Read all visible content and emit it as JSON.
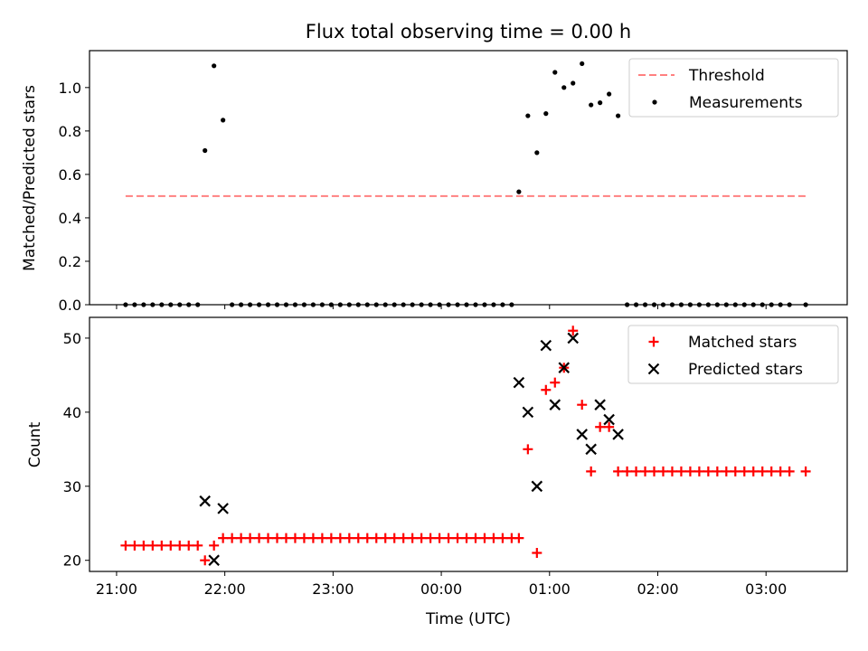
{
  "chart_data": [
    {
      "type": "scatter",
      "title": "Flux total observing time = 0.00 h",
      "xlabel": "",
      "ylabel": "Matched/Predicted stars",
      "xlim": [
        "20:45",
        "03:45"
      ],
      "ylim": [
        0,
        1.17
      ],
      "yticks": [
        0.0,
        0.2,
        0.4,
        0.6,
        0.8,
        1.0
      ],
      "ytick_labels": [
        "0.0",
        "0.2",
        "0.4",
        "0.6",
        "0.8",
        "1.0"
      ],
      "legend_placement": "top-right",
      "series": [
        {
          "name": "Threshold",
          "kind": "dashed-line",
          "color": "#ff8080",
          "points": [
            [
              "21:05",
              0.5
            ],
            [
              "03:22",
              0.5
            ]
          ]
        },
        {
          "name": "Measurements",
          "kind": "dots",
          "color": "#000000",
          "points": [
            [
              "21:05",
              0
            ],
            [
              "21:10",
              0
            ],
            [
              "21:15",
              0
            ],
            [
              "21:20",
              0
            ],
            [
              "21:25",
              0
            ],
            [
              "21:30",
              0
            ],
            [
              "21:35",
              0
            ],
            [
              "21:40",
              0
            ],
            [
              "21:45",
              0
            ],
            [
              "21:49",
              0.71
            ],
            [
              "21:54",
              1.1
            ],
            [
              "21:59",
              0.85
            ],
            [
              "22:04",
              0
            ],
            [
              "22:09",
              0
            ],
            [
              "22:14",
              0
            ],
            [
              "22:19",
              0
            ],
            [
              "22:24",
              0
            ],
            [
              "22:29",
              0
            ],
            [
              "22:34",
              0
            ],
            [
              "22:39",
              0
            ],
            [
              "22:44",
              0
            ],
            [
              "22:49",
              0
            ],
            [
              "22:54",
              0
            ],
            [
              "22:59",
              0
            ],
            [
              "23:04",
              0
            ],
            [
              "23:09",
              0
            ],
            [
              "23:14",
              0
            ],
            [
              "23:19",
              0
            ],
            [
              "23:24",
              0
            ],
            [
              "23:29",
              0
            ],
            [
              "23:34",
              0
            ],
            [
              "23:39",
              0
            ],
            [
              "23:44",
              0
            ],
            [
              "23:49",
              0
            ],
            [
              "23:54",
              0
            ],
            [
              "23:59",
              0
            ],
            [
              "00:04",
              0
            ],
            [
              "00:09",
              0
            ],
            [
              "00:14",
              0
            ],
            [
              "00:19",
              0
            ],
            [
              "00:24",
              0
            ],
            [
              "00:29",
              0
            ],
            [
              "00:34",
              0
            ],
            [
              "00:39",
              0
            ],
            [
              "00:43",
              0.52
            ],
            [
              "00:48",
              0.87
            ],
            [
              "00:53",
              0.7
            ],
            [
              "00:58",
              0.88
            ],
            [
              "01:03",
              1.07
            ],
            [
              "01:08",
              1.0
            ],
            [
              "01:13",
              1.02
            ],
            [
              "01:18",
              1.11
            ],
            [
              "01:23",
              0.92
            ],
            [
              "01:28",
              0.93
            ],
            [
              "01:33",
              0.97
            ],
            [
              "01:38",
              0.87
            ],
            [
              "01:43",
              0
            ],
            [
              "01:48",
              0
            ],
            [
              "01:53",
              0
            ],
            [
              "01:58",
              0
            ],
            [
              "02:03",
              0
            ],
            [
              "02:08",
              0
            ],
            [
              "02:13",
              0
            ],
            [
              "02:18",
              0
            ],
            [
              "02:23",
              0
            ],
            [
              "02:28",
              0
            ],
            [
              "02:33",
              0
            ],
            [
              "02:38",
              0
            ],
            [
              "02:43",
              0
            ],
            [
              "02:48",
              0
            ],
            [
              "02:53",
              0
            ],
            [
              "02:58",
              0
            ],
            [
              "03:03",
              0
            ],
            [
              "03:08",
              0
            ],
            [
              "03:13",
              0
            ],
            [
              "03:22",
              0
            ]
          ]
        }
      ]
    },
    {
      "type": "scatter",
      "title": "",
      "xlabel": "Time (UTC)",
      "ylabel": "Count",
      "xlim": [
        "20:45",
        "03:45"
      ],
      "ylim": [
        18.5,
        52.8
      ],
      "yticks": [
        20,
        30,
        40,
        50
      ],
      "ytick_labels": [
        "20",
        "30",
        "40",
        "50"
      ],
      "xticks": [
        "21:00",
        "22:00",
        "23:00",
        "00:00",
        "01:00",
        "02:00",
        "03:00"
      ],
      "xtick_labels": [
        "21:00",
        "22:00",
        "23:00",
        "00:00",
        "01:00",
        "02:00",
        "03:00"
      ],
      "legend_placement": "top-right",
      "series": [
        {
          "name": "Matched stars",
          "kind": "plus",
          "color": "#ff0000",
          "points": [
            [
              "21:05",
              22
            ],
            [
              "21:10",
              22
            ],
            [
              "21:15",
              22
            ],
            [
              "21:20",
              22
            ],
            [
              "21:25",
              22
            ],
            [
              "21:30",
              22
            ],
            [
              "21:35",
              22
            ],
            [
              "21:40",
              22
            ],
            [
              "21:45",
              22
            ],
            [
              "21:49",
              20
            ],
            [
              "21:54",
              22
            ],
            [
              "21:59",
              23
            ],
            [
              "22:04",
              23
            ],
            [
              "22:09",
              23
            ],
            [
              "22:14",
              23
            ],
            [
              "22:19",
              23
            ],
            [
              "22:24",
              23
            ],
            [
              "22:29",
              23
            ],
            [
              "22:34",
              23
            ],
            [
              "22:39",
              23
            ],
            [
              "22:44",
              23
            ],
            [
              "22:49",
              23
            ],
            [
              "22:54",
              23
            ],
            [
              "22:59",
              23
            ],
            [
              "23:04",
              23
            ],
            [
              "23:09",
              23
            ],
            [
              "23:14",
              23
            ],
            [
              "23:19",
              23
            ],
            [
              "23:24",
              23
            ],
            [
              "23:29",
              23
            ],
            [
              "23:34",
              23
            ],
            [
              "23:39",
              23
            ],
            [
              "23:44",
              23
            ],
            [
              "23:49",
              23
            ],
            [
              "23:54",
              23
            ],
            [
              "23:59",
              23
            ],
            [
              "00:04",
              23
            ],
            [
              "00:09",
              23
            ],
            [
              "00:14",
              23
            ],
            [
              "00:19",
              23
            ],
            [
              "00:24",
              23
            ],
            [
              "00:29",
              23
            ],
            [
              "00:34",
              23
            ],
            [
              "00:39",
              23
            ],
            [
              "00:43",
              23
            ],
            [
              "00:48",
              35
            ],
            [
              "00:53",
              21
            ],
            [
              "00:58",
              43
            ],
            [
              "01:03",
              44
            ],
            [
              "01:08",
              46
            ],
            [
              "01:13",
              51
            ],
            [
              "01:18",
              41
            ],
            [
              "01:23",
              32
            ],
            [
              "01:28",
              38
            ],
            [
              "01:33",
              38
            ],
            [
              "01:38",
              32
            ],
            [
              "01:43",
              32
            ],
            [
              "01:48",
              32
            ],
            [
              "01:53",
              32
            ],
            [
              "01:58",
              32
            ],
            [
              "02:03",
              32
            ],
            [
              "02:08",
              32
            ],
            [
              "02:13",
              32
            ],
            [
              "02:18",
              32
            ],
            [
              "02:23",
              32
            ],
            [
              "02:28",
              32
            ],
            [
              "02:33",
              32
            ],
            [
              "02:38",
              32
            ],
            [
              "02:43",
              32
            ],
            [
              "02:48",
              32
            ],
            [
              "02:53",
              32
            ],
            [
              "02:58",
              32
            ],
            [
              "03:03",
              32
            ],
            [
              "03:08",
              32
            ],
            [
              "03:13",
              32
            ],
            [
              "03:22",
              32
            ]
          ]
        },
        {
          "name": "Predicted stars",
          "kind": "x",
          "color": "#000000",
          "points": [
            [
              "21:49",
              28
            ],
            [
              "21:54",
              20
            ],
            [
              "21:59",
              27
            ],
            [
              "00:43",
              44
            ],
            [
              "00:48",
              40
            ],
            [
              "00:53",
              30
            ],
            [
              "00:58",
              49
            ],
            [
              "01:03",
              41
            ],
            [
              "01:08",
              46
            ],
            [
              "01:13",
              50
            ],
            [
              "01:18",
              37
            ],
            [
              "01:23",
              35
            ],
            [
              "01:28",
              41
            ],
            [
              "01:33",
              39
            ],
            [
              "01:38",
              37
            ]
          ]
        }
      ]
    }
  ]
}
